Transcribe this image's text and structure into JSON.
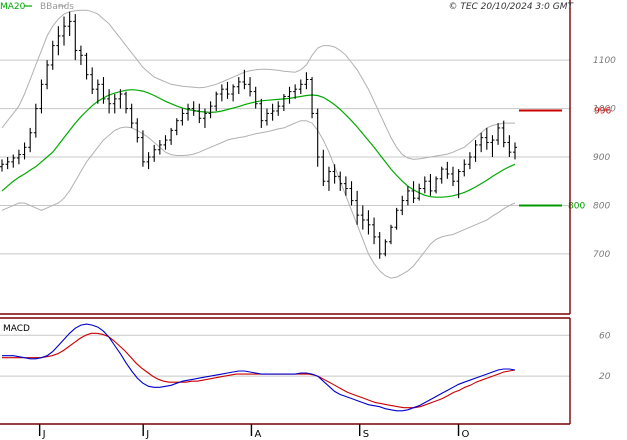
{
  "header": {
    "ma_label": "MA20",
    "bb_label": "BBands",
    "copyright": "© TEC 20/10/2024 3:0 GMT"
  },
  "levels": {
    "resistance": {
      "value": 996,
      "label": "996",
      "color": "#cc0000"
    },
    "support": {
      "value": 800,
      "label": "800",
      "color": "#009900"
    }
  },
  "macd": {
    "label": "MACD"
  },
  "colors": {
    "ma": "#00aa00",
    "bbands": "#b0b0b0",
    "price": "#000000",
    "macd_line": "#0000cc",
    "signal_line": "#cc0000",
    "grid": "#c8c8c8",
    "frame": "#7a0000"
  },
  "chart_data": [
    {
      "type": "line",
      "title": "",
      "ylim": [
        580,
        1220
      ],
      "y_ticks": [
        700,
        800,
        900,
        1000,
        1100
      ],
      "y_tick_labels": [
        "700",
        "800",
        "900",
        "1000",
        "1100"
      ],
      "x_tick_labels": [
        "J",
        "J",
        "A",
        "S",
        "O"
      ],
      "x_tick_index": [
        8,
        30,
        53,
        76,
        97
      ],
      "n_points": 110,
      "legend": [
        "MA20",
        "BBands"
      ],
      "grid": true,
      "price_ohlc": [
        [
          880,
          895,
          870,
          885
        ],
        [
          885,
          900,
          875,
          890
        ],
        [
          890,
          905,
          878,
          898
        ],
        [
          898,
          915,
          885,
          905
        ],
        [
          905,
          930,
          895,
          920
        ],
        [
          920,
          960,
          910,
          950
        ],
        [
          950,
          1010,
          940,
          1000
        ],
        [
          1000,
          1060,
          990,
          1050
        ],
        [
          1050,
          1100,
          1040,
          1090
        ],
        [
          1090,
          1140,
          1080,
          1130
        ],
        [
          1130,
          1170,
          1110,
          1150
        ],
        [
          1150,
          1190,
          1130,
          1170
        ],
        [
          1170,
          1200,
          1150,
          1180
        ],
        [
          1180,
          1195,
          1100,
          1120
        ],
        [
          1120,
          1130,
          1090,
          1110
        ],
        [
          1110,
          1115,
          1060,
          1070
        ],
        [
          1070,
          1085,
          1030,
          1040
        ],
        [
          1040,
          1060,
          1010,
          1050
        ],
        [
          1050,
          1065,
          1010,
          1020
        ],
        [
          1020,
          1040,
          990,
          1010
        ],
        [
          1010,
          1030,
          990,
          1020
        ],
        [
          1020,
          1040,
          1000,
          1030
        ],
        [
          1030,
          1035,
          990,
          1000
        ],
        [
          1000,
          1010,
          960,
          970
        ],
        [
          970,
          980,
          930,
          940
        ],
        [
          940,
          955,
          880,
          890
        ],
        [
          890,
          910,
          875,
          900
        ],
        [
          900,
          925,
          890,
          915
        ],
        [
          915,
          935,
          905,
          925
        ],
        [
          925,
          945,
          915,
          935
        ],
        [
          935,
          960,
          925,
          955
        ],
        [
          955,
          980,
          945,
          975
        ],
        [
          975,
          1000,
          965,
          990
        ],
        [
          990,
          1010,
          975,
          1000
        ],
        [
          1000,
          1015,
          985,
          995
        ],
        [
          995,
          1010,
          970,
          980
        ],
        [
          980,
          1000,
          960,
          990
        ],
        [
          990,
          1015,
          980,
          1005
        ],
        [
          1005,
          1035,
          995,
          1030
        ],
        [
          1030,
          1050,
          1015,
          1040
        ],
        [
          1040,
          1055,
          1020,
          1030
        ],
        [
          1030,
          1050,
          1015,
          1045
        ],
        [
          1045,
          1065,
          1030,
          1055
        ],
        [
          1055,
          1080,
          1040,
          1050
        ],
        [
          1050,
          1065,
          1025,
          1035
        ],
        [
          1035,
          1045,
          1000,
          1010
        ],
        [
          1010,
          1020,
          960,
          975
        ],
        [
          975,
          1000,
          965,
          990
        ],
        [
          990,
          1010,
          975,
          995
        ],
        [
          995,
          1015,
          985,
          1005
        ],
        [
          1005,
          1030,
          995,
          1025
        ],
        [
          1025,
          1045,
          1010,
          1035
        ],
        [
          1035,
          1050,
          1020,
          1040
        ],
        [
          1040,
          1060,
          1030,
          1050
        ],
        [
          1050,
          1075,
          1040,
          1060
        ],
        [
          1060,
          1065,
          980,
          990
        ],
        [
          990,
          1000,
          880,
          900
        ],
        [
          900,
          915,
          840,
          850
        ],
        [
          850,
          880,
          830,
          870
        ],
        [
          870,
          885,
          845,
          860
        ],
        [
          860,
          870,
          830,
          845
        ],
        [
          845,
          860,
          820,
          835
        ],
        [
          835,
          850,
          800,
          810
        ],
        [
          810,
          830,
          760,
          780
        ],
        [
          780,
          800,
          750,
          770
        ],
        [
          770,
          790,
          740,
          760
        ],
        [
          760,
          775,
          720,
          735
        ],
        [
          735,
          745,
          690,
          700
        ],
        [
          700,
          730,
          695,
          725
        ],
        [
          725,
          760,
          720,
          755
        ],
        [
          755,
          795,
          750,
          790
        ],
        [
          790,
          820,
          780,
          810
        ],
        [
          810,
          840,
          800,
          830
        ],
        [
          830,
          850,
          805,
          815
        ],
        [
          815,
          845,
          810,
          835
        ],
        [
          835,
          860,
          825,
          850
        ],
        [
          850,
          865,
          820,
          830
        ],
        [
          830,
          860,
          825,
          855
        ],
        [
          855,
          880,
          845,
          875
        ],
        [
          875,
          890,
          855,
          865
        ],
        [
          865,
          880,
          840,
          850
        ],
        [
          850,
          875,
          815,
          870
        ],
        [
          870,
          895,
          860,
          885
        ],
        [
          885,
          910,
          875,
          900
        ],
        [
          900,
          935,
          890,
          925
        ],
        [
          925,
          950,
          910,
          940
        ],
        [
          940,
          960,
          915,
          930
        ],
        [
          930,
          945,
          900,
          935
        ],
        [
          935,
          970,
          925,
          960
        ],
        [
          960,
          975,
          920,
          930
        ],
        [
          930,
          945,
          900,
          910
        ],
        [
          910,
          930,
          895,
          920
        ]
      ],
      "ma20": [
        830,
        840,
        850,
        858,
        865,
        873,
        880,
        890,
        900,
        910,
        925,
        940,
        955,
        970,
        983,
        995,
        1006,
        1015,
        1022,
        1028,
        1032,
        1035,
        1038,
        1039,
        1038,
        1036,
        1032,
        1027,
        1021,
        1015,
        1010,
        1005,
        1001,
        998,
        996,
        994,
        993,
        992,
        993,
        995,
        998,
        1001,
        1004,
        1008,
        1011,
        1014,
        1016,
        1017,
        1018,
        1019,
        1020,
        1021,
        1023,
        1025,
        1027,
        1028,
        1027,
        1023,
        1016,
        1008,
        998,
        987,
        975,
        962,
        948,
        934,
        920,
        905,
        890,
        875,
        862,
        850,
        840,
        832,
        826,
        821,
        818,
        817,
        817,
        818,
        820,
        823,
        827,
        832,
        838,
        845,
        852,
        860,
        867,
        874,
        880,
        885
      ],
      "bb_upper": [
        960,
        975,
        990,
        1005,
        1030,
        1060,
        1090,
        1120,
        1150,
        1170,
        1185,
        1195,
        1200,
        1202,
        1203,
        1203,
        1200,
        1195,
        1185,
        1175,
        1160,
        1145,
        1130,
        1115,
        1100,
        1085,
        1075,
        1065,
        1060,
        1055,
        1050,
        1048,
        1046,
        1045,
        1044,
        1043,
        1044,
        1047,
        1050,
        1055,
        1060,
        1065,
        1070,
        1075,
        1078,
        1080,
        1081,
        1081,
        1080,
        1079,
        1077,
        1076,
        1075,
        1080,
        1090,
        1110,
        1125,
        1130,
        1130,
        1127,
        1120,
        1110,
        1095,
        1080,
        1060,
        1040,
        1015,
        990,
        965,
        940,
        920,
        905,
        898,
        895,
        896,
        898,
        900,
        902,
        904,
        906,
        910,
        915,
        920,
        930,
        940,
        950,
        960,
        965,
        968,
        970,
        970,
        970
      ],
      "bb_lower": [
        790,
        795,
        800,
        805,
        805,
        800,
        795,
        790,
        795,
        800,
        805,
        815,
        830,
        850,
        870,
        890,
        905,
        920,
        935,
        945,
        955,
        960,
        962,
        960,
        955,
        948,
        940,
        930,
        920,
        910,
        905,
        903,
        903,
        904,
        906,
        910,
        915,
        920,
        925,
        930,
        935,
        938,
        940,
        942,
        945,
        948,
        950,
        952,
        955,
        958,
        960,
        965,
        970,
        975,
        975,
        970,
        955,
        935,
        910,
        880,
        850,
        820,
        790,
        760,
        730,
        700,
        680,
        665,
        655,
        650,
        652,
        658,
        665,
        675,
        690,
        705,
        720,
        730,
        735,
        738,
        740,
        745,
        750,
        755,
        760,
        765,
        770,
        778,
        785,
        793,
        800,
        805
      ]
    },
    {
      "type": "line",
      "title": "MACD",
      "ylim": [
        -25,
        75
      ],
      "y_ticks": [
        20,
        60
      ],
      "y_tick_labels": [
        "20",
        "60"
      ],
      "legend": [],
      "grid": true,
      "macd": [
        40,
        40,
        40,
        39,
        38,
        37,
        37,
        38,
        40,
        44,
        50,
        56,
        62,
        67,
        70,
        71,
        70,
        68,
        64,
        58,
        50,
        42,
        33,
        25,
        18,
        13,
        10,
        9,
        9,
        10,
        11,
        13,
        15,
        16,
        17,
        18,
        19,
        20,
        21,
        22,
        23,
        24,
        25,
        25,
        24,
        23,
        22,
        22,
        22,
        22,
        22,
        22,
        22,
        23,
        23,
        22,
        20,
        15,
        10,
        5,
        2,
        0,
        -2,
        -4,
        -6,
        -8,
        -9,
        -10,
        -12,
        -13,
        -14,
        -14,
        -13,
        -11,
        -9,
        -6,
        -3,
        0,
        3,
        6,
        9,
        12,
        14,
        16,
        18,
        20,
        22,
        24,
        26,
        27,
        27,
        26
      ],
      "signal": [
        38,
        38,
        38,
        38,
        38,
        38,
        38,
        38,
        39,
        40,
        42,
        45,
        49,
        53,
        57,
        60,
        62,
        62,
        61,
        59,
        55,
        50,
        45,
        39,
        33,
        28,
        24,
        20,
        17,
        15,
        14,
        14,
        14,
        14,
        15,
        15,
        16,
        17,
        18,
        19,
        20,
        21,
        22,
        22,
        22,
        22,
        22,
        22,
        22,
        22,
        22,
        22,
        22,
        22,
        22,
        22,
        21,
        19,
        16,
        13,
        10,
        7,
        4,
        2,
        0,
        -2,
        -4,
        -6,
        -7,
        -8,
        -9,
        -10,
        -11,
        -11,
        -11,
        -10,
        -8,
        -6,
        -4,
        -2,
        1,
        4,
        6,
        9,
        11,
        14,
        16,
        18,
        20,
        22,
        24,
        25,
        26
      ]
    }
  ]
}
